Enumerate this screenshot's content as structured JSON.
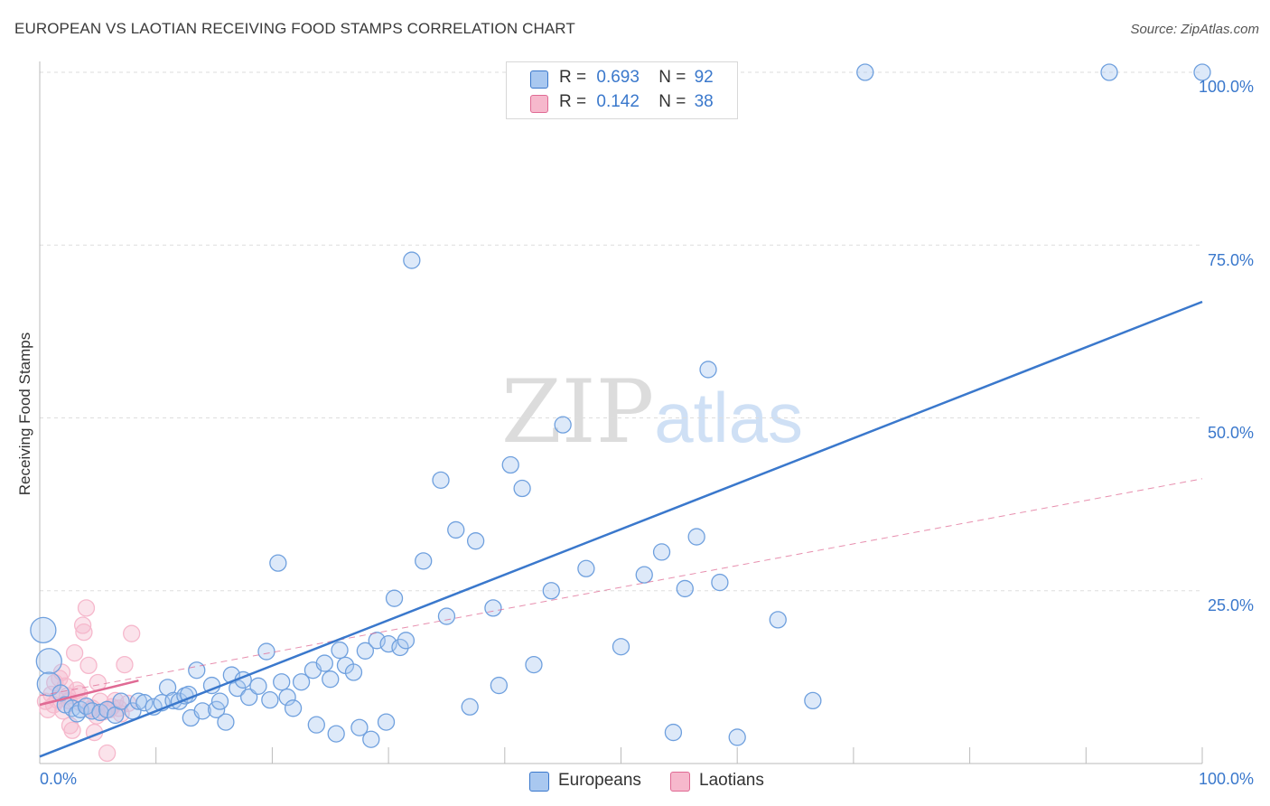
{
  "header": {
    "title": "EUROPEAN VS LAOTIAN RECEIVING FOOD STAMPS CORRELATION CHART",
    "source": "Source: ZipAtlas.com"
  },
  "watermark": {
    "zip": "ZIP",
    "atlas": "atlas"
  },
  "legend": {
    "europeans": {
      "r_label": "R =",
      "r_value": "0.693",
      "n_label": "N =",
      "n_value": "92"
    },
    "laotians": {
      "r_label": "R =",
      "r_value": "0.142",
      "n_label": "N =",
      "n_value": "38"
    }
  },
  "bottom_legend": {
    "europeans": "Europeans",
    "laotians": "Laotians"
  },
  "colors": {
    "blue": "#3a78cc",
    "blue_fill": "#a9c8f0",
    "pink": "#e06a94",
    "pink_fill": "#f6b8cc",
    "grid": "#dddddd"
  },
  "chart_data": {
    "type": "scatter",
    "title": "EUROPEAN VS LAOTIAN RECEIVING FOOD STAMPS CORRELATION CHART",
    "xlabel": "",
    "ylabel": "Receiving Food Stamps",
    "xlim": [
      0,
      100
    ],
    "ylim": [
      0,
      100
    ],
    "x_tick_labels": [
      "0.0%",
      "100.0%"
    ],
    "y_tick_labels": [
      "25.0%",
      "50.0%",
      "75.0%",
      "100.0%"
    ],
    "y_ticks": [
      25,
      50,
      75,
      100
    ],
    "grid": true,
    "legend_position": "top-center",
    "series": [
      {
        "name": "Europeans",
        "color": "#3a78cc",
        "r": 0.693,
        "n": 92,
        "trend": {
          "x": [
            0,
            100
          ],
          "y": [
            1.0,
            66.8
          ],
          "style": "solid"
        },
        "points": [
          [
            0.3,
            19.3,
            14
          ],
          [
            0.8,
            14.8,
            14
          ],
          [
            0.8,
            11.5,
            13
          ],
          [
            1.8,
            10.2,
            9
          ],
          [
            2.2,
            8.5,
            9
          ],
          [
            2.8,
            8.0,
            9
          ],
          [
            3.2,
            7.2,
            9
          ],
          [
            3.5,
            7.8,
            9
          ],
          [
            4.0,
            8.3,
            9
          ],
          [
            4.5,
            7.6,
            9
          ],
          [
            5.2,
            7.4,
            9
          ],
          [
            5.8,
            7.8,
            9
          ],
          [
            6.5,
            7.0,
            9
          ],
          [
            7.0,
            9.0,
            9
          ],
          [
            8.0,
            7.6,
            9
          ],
          [
            8.5,
            9.0,
            9
          ],
          [
            9.0,
            8.8,
            9
          ],
          [
            9.8,
            8.2,
            9
          ],
          [
            10.5,
            8.8,
            9
          ],
          [
            11.0,
            11.0,
            9
          ],
          [
            11.5,
            9.1,
            9
          ],
          [
            12.0,
            9.0,
            9
          ],
          [
            12.5,
            9.8,
            9
          ],
          [
            12.8,
            10.0,
            9
          ],
          [
            13.0,
            6.6,
            9
          ],
          [
            13.5,
            13.5,
            9
          ],
          [
            14.0,
            7.6,
            9
          ],
          [
            14.8,
            11.3,
            9
          ],
          [
            15.2,
            7.8,
            9
          ],
          [
            15.5,
            9.0,
            9
          ],
          [
            16.0,
            6.0,
            9
          ],
          [
            16.5,
            12.8,
            9
          ],
          [
            17.0,
            10.9,
            9
          ],
          [
            17.5,
            12.1,
            9
          ],
          [
            18.0,
            9.6,
            9
          ],
          [
            18.8,
            11.2,
            9
          ],
          [
            19.5,
            16.2,
            9
          ],
          [
            19.8,
            9.2,
            9
          ],
          [
            20.5,
            29.0,
            9
          ],
          [
            20.8,
            11.8,
            9
          ],
          [
            21.3,
            9.6,
            9
          ],
          [
            21.8,
            8.0,
            9
          ],
          [
            22.5,
            11.8,
            9
          ],
          [
            23.5,
            13.5,
            9
          ],
          [
            23.8,
            5.6,
            9
          ],
          [
            24.5,
            14.5,
            9
          ],
          [
            25.0,
            12.2,
            9
          ],
          [
            25.5,
            4.3,
            9
          ],
          [
            25.8,
            16.4,
            9
          ],
          [
            26.3,
            14.2,
            9
          ],
          [
            27.0,
            13.2,
            9
          ],
          [
            27.5,
            5.2,
            9
          ],
          [
            28.0,
            16.3,
            9
          ],
          [
            28.5,
            3.5,
            9
          ],
          [
            29.0,
            17.8,
            9
          ],
          [
            29.8,
            6.0,
            9
          ],
          [
            30.0,
            17.3,
            9
          ],
          [
            30.5,
            23.9,
            9
          ],
          [
            31.0,
            16.8,
            9
          ],
          [
            31.5,
            17.8,
            9
          ],
          [
            32.0,
            72.8,
            9
          ],
          [
            33.0,
            29.3,
            9
          ],
          [
            34.5,
            41.0,
            9
          ],
          [
            35.0,
            21.3,
            9
          ],
          [
            35.8,
            33.8,
            9
          ],
          [
            37.0,
            8.2,
            9
          ],
          [
            37.5,
            32.2,
            9
          ],
          [
            39.0,
            22.5,
            9
          ],
          [
            39.5,
            11.3,
            9
          ],
          [
            40.5,
            43.2,
            9
          ],
          [
            41.5,
            39.8,
            9
          ],
          [
            42.5,
            14.3,
            9
          ],
          [
            44.0,
            25.0,
            9
          ],
          [
            45.0,
            49.0,
            9
          ],
          [
            47.0,
            28.2,
            9
          ],
          [
            50.0,
            16.9,
            9
          ],
          [
            52.0,
            27.3,
            9
          ],
          [
            53.5,
            30.6,
            9
          ],
          [
            54.5,
            4.5,
            9
          ],
          [
            55.5,
            25.3,
            9
          ],
          [
            56.5,
            32.8,
            9
          ],
          [
            57.5,
            57.0,
            9
          ],
          [
            58.5,
            26.2,
            9
          ],
          [
            60.0,
            3.8,
            9
          ],
          [
            63.5,
            20.8,
            9
          ],
          [
            66.5,
            9.1,
            9
          ],
          [
            71.0,
            100.0,
            9
          ],
          [
            92.0,
            100.0,
            9
          ],
          [
            100.0,
            100.0,
            9
          ]
        ]
      },
      {
        "name": "Laotians",
        "color": "#e06a94",
        "r": 0.142,
        "n": 38,
        "trend_observed": {
          "x": [
            0,
            8.5
          ],
          "y": [
            8.5,
            12.0
          ],
          "style": "solid"
        },
        "trend_projected": {
          "x": [
            0,
            100
          ],
          "y": [
            9.8,
            41.2
          ],
          "style": "dashed"
        },
        "points": [
          [
            0.5,
            9.0,
            9
          ],
          [
            0.7,
            7.8,
            9
          ],
          [
            1.0,
            10.0,
            9
          ],
          [
            1.2,
            8.5,
            9
          ],
          [
            1.5,
            9.2,
            9
          ],
          [
            1.7,
            12.3,
            9
          ],
          [
            1.9,
            13.2,
            9
          ],
          [
            2.0,
            7.6,
            9
          ],
          [
            2.2,
            11.2,
            9
          ],
          [
            2.5,
            9.1,
            9
          ],
          [
            2.6,
            5.5,
            9
          ],
          [
            2.8,
            4.8,
            9
          ],
          [
            3.0,
            16.0,
            9
          ],
          [
            3.2,
            10.6,
            9
          ],
          [
            3.5,
            8.8,
            9
          ],
          [
            3.7,
            20.0,
            9
          ],
          [
            3.8,
            19.0,
            9
          ],
          [
            4.0,
            22.5,
            9
          ],
          [
            4.2,
            14.2,
            9
          ],
          [
            4.3,
            7.8,
            9
          ],
          [
            4.5,
            8.0,
            9
          ],
          [
            4.7,
            4.5,
            9
          ],
          [
            5.0,
            11.7,
            9
          ],
          [
            5.2,
            9.0,
            9
          ],
          [
            5.5,
            7.5,
            9
          ],
          [
            5.8,
            1.5,
            9
          ],
          [
            6.0,
            7.8,
            9
          ],
          [
            6.2,
            8.2,
            9
          ],
          [
            6.5,
            9.1,
            9
          ],
          [
            6.8,
            8.0,
            9
          ],
          [
            7.0,
            7.2,
            9
          ],
          [
            7.3,
            14.3,
            9
          ],
          [
            7.6,
            8.7,
            9
          ],
          [
            7.9,
            18.8,
            9
          ],
          [
            1.3,
            11.7,
            9
          ],
          [
            2.4,
            9.8,
            9
          ],
          [
            3.4,
            10.1,
            9
          ],
          [
            4.9,
            6.9,
            9
          ]
        ]
      }
    ]
  }
}
